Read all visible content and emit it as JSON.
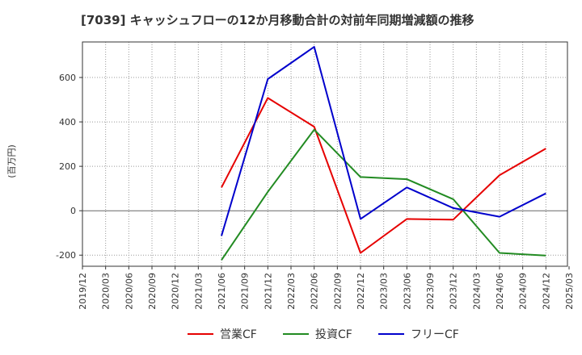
{
  "chart_data": {
    "type": "line",
    "title": "[7039]  キャッシュフローの12か月移動合計の対前年同期増減額の推移",
    "ylabel": "(百万円)",
    "xlabel": "",
    "ylim": [
      -250,
      760
    ],
    "yticks": [
      -200,
      0,
      200,
      400,
      600
    ],
    "grid": true,
    "legend_position": "bottom",
    "categories": [
      "2019/12",
      "2020/03",
      "2020/06",
      "2020/09",
      "2020/12",
      "2021/03",
      "2021/06",
      "2021/09",
      "2021/12",
      "2022/03",
      "2022/06",
      "2022/09",
      "2022/12",
      "2023/03",
      "2023/06",
      "2023/09",
      "2023/12",
      "2024/03",
      "2024/06",
      "2024/09",
      "2024/12",
      "2025/03"
    ],
    "series": [
      {
        "name": "営業CF",
        "color": "#e60000",
        "values": [
          null,
          null,
          null,
          null,
          null,
          null,
          105,
          null,
          508,
          null,
          378,
          null,
          -190,
          null,
          -37,
          null,
          -40,
          null,
          160,
          null,
          280,
          null
        ]
      },
      {
        "name": "投資CF",
        "color": "#228b22",
        "values": [
          null,
          null,
          null,
          null,
          null,
          null,
          -222,
          null,
          85,
          null,
          365,
          null,
          152,
          null,
          142,
          null,
          52,
          null,
          -190,
          null,
          -202,
          null
        ]
      },
      {
        "name": "フリーCF",
        "color": "#0000cc",
        "values": [
          null,
          null,
          null,
          null,
          null,
          null,
          -113,
          null,
          593,
          null,
          738,
          null,
          -37,
          null,
          105,
          null,
          12,
          null,
          -27,
          null,
          78,
          null
        ]
      }
    ]
  }
}
